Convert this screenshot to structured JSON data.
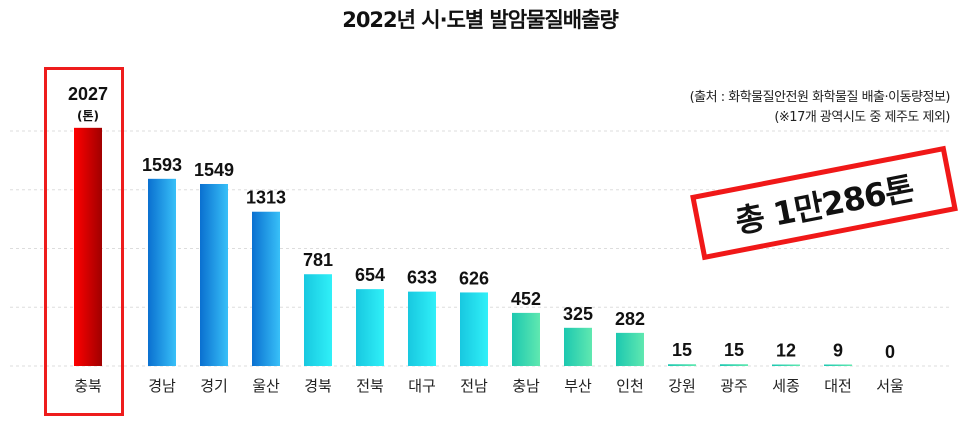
{
  "chart_data": {
    "type": "bar",
    "title": "2022년 시·도별 발암물질배출량",
    "unit_label": "(톤)",
    "categories": [
      "충북",
      "경남",
      "경기",
      "울산",
      "경북",
      "전북",
      "대구",
      "전남",
      "충남",
      "부산",
      "인천",
      "강원",
      "광주",
      "세종",
      "대전",
      "서울"
    ],
    "values": [
      2027,
      1593,
      1549,
      1313,
      781,
      654,
      633,
      626,
      452,
      325,
      282,
      15,
      15,
      12,
      9,
      0
    ],
    "ylim": [
      0,
      2000
    ],
    "grid": true,
    "highlight_category": "충북",
    "colors": {
      "highlight": "#e00000",
      "high": "#1a8fe0",
      "mid": "#20d0e8",
      "low": "#30d8b0",
      "border": "#ee1c1c"
    }
  },
  "notes": {
    "source": "(출처 : 화학물질안전원 화학물질 배출·이동량정보)",
    "exclusion": "(※17개 광역시도 중 제주도 제외)"
  },
  "total_stamp": "총 1만286톤"
}
